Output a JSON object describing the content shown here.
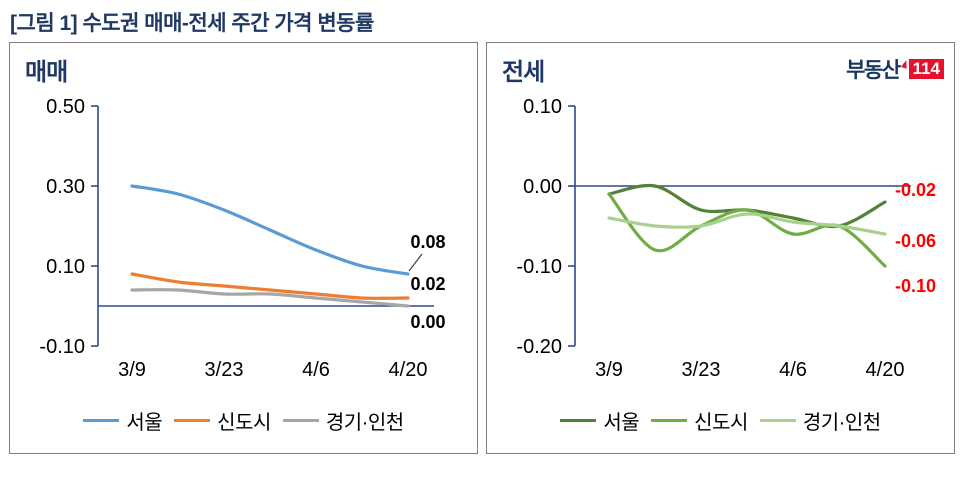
{
  "page": {
    "title": "[그림 1] 수도권 매매-전세 주간 가격 변동률"
  },
  "brand": {
    "text": "부동산",
    "badge": "114"
  },
  "style": {
    "title_color": "#1F3864",
    "axis_color": "#2E4B8F",
    "brand_text_color": "#17365D",
    "brand_badge_color": "#E8112D",
    "negative_label_color": "#FF0000",
    "panel_border_color": "#808080"
  },
  "chart_data": [
    {
      "type": "line",
      "title": "매매",
      "x": [
        "3/9",
        "3/16",
        "3/23",
        "3/30",
        "4/6",
        "4/13",
        "4/20"
      ],
      "x_tick_labels": [
        "3/9",
        "3/23",
        "4/6",
        "4/20"
      ],
      "x_tick_indices": [
        0,
        2,
        4,
        6
      ],
      "ylim": [
        -0.1,
        0.5
      ],
      "yticks": [
        0.5,
        0.3,
        0.1,
        -0.1
      ],
      "ytick_labels": [
        "0.50",
        "0.30",
        "0.10",
        "-0.10"
      ],
      "zero_line": 0.0,
      "grid": false,
      "legend_position": "bottom",
      "end_label_position": "above-end",
      "series": [
        {
          "name": "서울",
          "color": "#5B9BD5",
          "values": [
            0.3,
            0.28,
            0.24,
            0.19,
            0.14,
            0.1,
            0.08
          ]
        },
        {
          "name": "신도시",
          "color": "#ED7D31",
          "values": [
            0.08,
            0.06,
            0.05,
            0.04,
            0.03,
            0.02,
            0.02
          ]
        },
        {
          "name": "경기·인천",
          "color": "#A6A6A6",
          "values": [
            0.04,
            0.04,
            0.03,
            0.03,
            0.02,
            0.01,
            0.0
          ]
        }
      ],
      "end_labels": [
        {
          "text": "0.08",
          "value": 0.08,
          "dy": -26,
          "color": "#000000",
          "leader": true
        },
        {
          "text": "0.02",
          "value": 0.02,
          "dy": -8,
          "color": "#000000"
        },
        {
          "text": "0.00",
          "value": 0.0,
          "dy": 22,
          "color": "#000000"
        }
      ]
    },
    {
      "type": "line",
      "title": "전세",
      "x": [
        "3/9",
        "3/16",
        "3/23",
        "3/30",
        "4/6",
        "4/13",
        "4/20"
      ],
      "x_tick_labels": [
        "3/9",
        "3/23",
        "4/6",
        "4/20"
      ],
      "x_tick_indices": [
        0,
        2,
        4,
        6
      ],
      "ylim": [
        -0.2,
        0.1
      ],
      "yticks": [
        0.1,
        0.0,
        -0.1,
        -0.2
      ],
      "ytick_labels": [
        "0.10",
        "0.00",
        "-0.10",
        "-0.20"
      ],
      "zero_line": 0.0,
      "grid": false,
      "legend_position": "bottom",
      "end_label_position": "right-of-end",
      "series": [
        {
          "name": "서울",
          "color": "#538135",
          "values": [
            -0.01,
            0.0,
            -0.03,
            -0.03,
            -0.04,
            -0.05,
            -0.02
          ]
        },
        {
          "name": "신도시",
          "color": "#70AD47",
          "values": [
            -0.01,
            -0.08,
            -0.05,
            -0.03,
            -0.06,
            -0.05,
            -0.1
          ]
        },
        {
          "name": "경기·인천",
          "color": "#A9D18E",
          "values": [
            -0.04,
            -0.05,
            -0.05,
            -0.035,
            -0.045,
            -0.05,
            -0.06
          ]
        }
      ],
      "end_labels": [
        {
          "text": "-0.02",
          "value": -0.02,
          "dy": -6,
          "color": "#FF0000"
        },
        {
          "text": "-0.06",
          "value": -0.06,
          "dy": 13,
          "color": "#FF0000"
        },
        {
          "text": "-0.10",
          "value": -0.1,
          "dy": 26,
          "color": "#FF0000"
        }
      ]
    }
  ]
}
